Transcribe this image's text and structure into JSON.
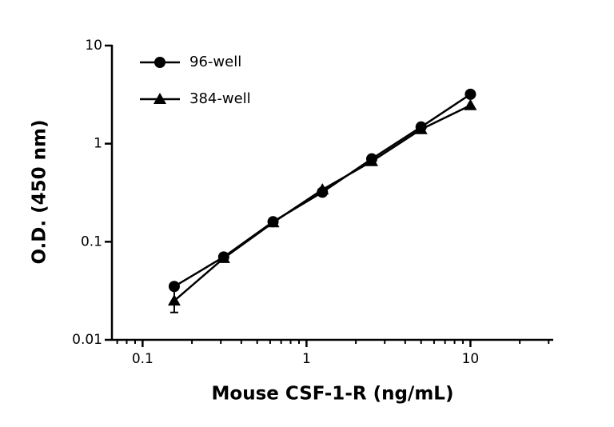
{
  "chart_data": {
    "type": "line",
    "x_label": "Mouse CSF-1-R (ng/mL)",
    "y_label": "O.D. (450 nm)",
    "x": [
      0.156,
      0.3125,
      0.625,
      1.25,
      2.5,
      5,
      10
    ],
    "series": [
      {
        "name": "96-well",
        "color": "#000000",
        "marker": "circle",
        "values": [
          0.035,
          0.07,
          0.16,
          0.32,
          0.7,
          1.48,
          3.19
        ]
      },
      {
        "name": "384-well",
        "color": "#000000",
        "marker": "triangle",
        "values": [
          0.025,
          0.068,
          0.157,
          0.34,
          0.66,
          1.4,
          2.46
        ],
        "errors": [
          0.006,
          null,
          null,
          null,
          null,
          null,
          null
        ]
      }
    ],
    "x_log": true,
    "y_log": true,
    "xlim": [
      0.065,
      32
    ],
    "ylim": [
      0.01,
      10
    ],
    "xticks": [
      0.1,
      1,
      10
    ],
    "yticks": [
      0.01,
      0.1,
      1,
      10
    ],
    "x_minor_ticks": true,
    "legend": "top-left"
  }
}
